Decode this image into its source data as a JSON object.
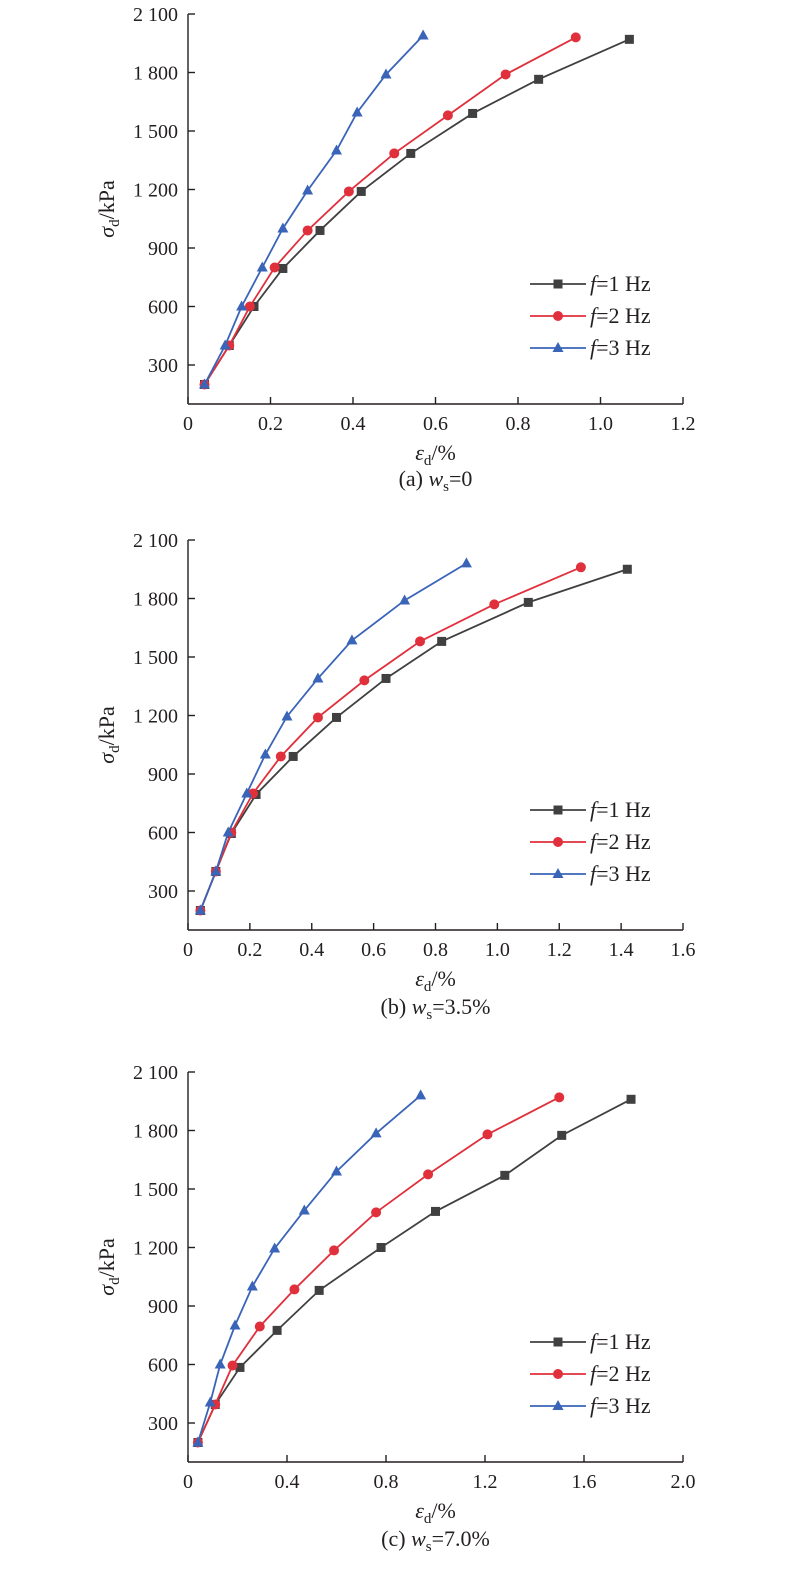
{
  "colors": {
    "f1": "#404040",
    "f2": "#e0303c",
    "f3": "#3a64b8",
    "axis": "#231f20"
  },
  "chart_data": [
    {
      "type": "line",
      "caption": {
        "prefix": "(a) ",
        "var": "w",
        "sub": "s",
        "rest": "=0"
      },
      "xlabel": {
        "sym": "ε",
        "sub": "d",
        "unit": "/%"
      },
      "ylabel": {
        "sym": "σ",
        "sub": "d",
        "unit": "/kPa"
      },
      "xlim": [
        0,
        1.2
      ],
      "ylim": [
        100,
        2100
      ],
      "xticks": [
        0,
        0.2,
        0.4,
        0.6,
        0.8,
        1.0,
        1.2
      ],
      "xtick_labels": [
        "0",
        "0.2",
        "0.4",
        "0.6",
        "0.8",
        "1.0",
        "1.2"
      ],
      "yticks": [
        300,
        600,
        900,
        1200,
        1500,
        1800,
        2100
      ],
      "ytick_labels": [
        "300",
        "600",
        "900",
        "1 200",
        "1 500",
        "1 800",
        "2 100"
      ],
      "legend_position": "center-right",
      "series": [
        {
          "name": "=1 Hz",
          "key": "f",
          "marker": "square",
          "color": "#404040",
          "x": [
            0.04,
            0.1,
            0.16,
            0.23,
            0.32,
            0.42,
            0.54,
            0.69,
            0.85,
            1.07
          ],
          "y": [
            200,
            400,
            600,
            795,
            990,
            1190,
            1385,
            1590,
            1765,
            1970
          ]
        },
        {
          "name": "=2 Hz",
          "key": "f",
          "marker": "circle",
          "color": "#e0303c",
          "x": [
            0.04,
            0.1,
            0.15,
            0.21,
            0.29,
            0.39,
            0.5,
            0.63,
            0.77,
            0.94
          ],
          "y": [
            200,
            400,
            600,
            800,
            990,
            1190,
            1385,
            1580,
            1790,
            1980
          ]
        },
        {
          "name": "=3 Hz",
          "key": "f",
          "marker": "triangle",
          "color": "#3a64b8",
          "x": [
            0.04,
            0.09,
            0.13,
            0.18,
            0.23,
            0.29,
            0.36,
            0.41,
            0.48,
            0.57
          ],
          "y": [
            200,
            400,
            600,
            800,
            1000,
            1195,
            1400,
            1595,
            1790,
            1990
          ]
        }
      ]
    },
    {
      "type": "line",
      "caption": {
        "prefix": "(b) ",
        "var": "w",
        "sub": "s",
        "rest": "=3.5%"
      },
      "xlabel": {
        "sym": "ε",
        "sub": "d",
        "unit": "/%"
      },
      "ylabel": {
        "sym": "σ",
        "sub": "d",
        "unit": "/kPa"
      },
      "xlim": [
        0,
        1.6
      ],
      "ylim": [
        100,
        2100
      ],
      "xticks": [
        0,
        0.2,
        0.4,
        0.6,
        0.8,
        1.0,
        1.2,
        1.4,
        1.6
      ],
      "xtick_labels": [
        "0",
        "0.2",
        "0.4",
        "0.6",
        "0.8",
        "1.0",
        "1.2",
        "1.4",
        "1.6"
      ],
      "yticks": [
        300,
        600,
        900,
        1200,
        1500,
        1800,
        2100
      ],
      "ytick_labels": [
        "300",
        "600",
        "900",
        "1 200",
        "1 500",
        "1 800",
        "2 100"
      ],
      "legend_position": "lower-right",
      "series": [
        {
          "name": "=1 Hz",
          "key": "f",
          "marker": "square",
          "color": "#404040",
          "x": [
            0.04,
            0.09,
            0.14,
            0.22,
            0.34,
            0.48,
            0.64,
            0.82,
            1.1,
            1.42
          ],
          "y": [
            200,
            400,
            595,
            795,
            990,
            1190,
            1390,
            1580,
            1780,
            1950
          ]
        },
        {
          "name": "=2 Hz",
          "key": "f",
          "marker": "circle",
          "color": "#e0303c",
          "x": [
            0.04,
            0.09,
            0.14,
            0.21,
            0.3,
            0.42,
            0.57,
            0.75,
            0.99,
            1.27
          ],
          "y": [
            200,
            400,
            600,
            800,
            990,
            1190,
            1380,
            1580,
            1770,
            1960
          ]
        },
        {
          "name": "=3 Hz",
          "key": "f",
          "marker": "triangle",
          "color": "#3a64b8",
          "x": [
            0.04,
            0.09,
            0.13,
            0.19,
            0.25,
            0.32,
            0.42,
            0.53,
            0.7,
            0.9
          ],
          "y": [
            200,
            400,
            600,
            800,
            1000,
            1195,
            1390,
            1585,
            1790,
            1980
          ]
        }
      ]
    },
    {
      "type": "line",
      "caption": {
        "prefix": "(c) ",
        "var": "w",
        "sub": "s",
        "rest": "=7.0%"
      },
      "xlabel": {
        "sym": "ε",
        "sub": "d",
        "unit": "/%"
      },
      "ylabel": {
        "sym": "σ",
        "sub": "d",
        "unit": "/kPa"
      },
      "xlim": [
        0,
        2.0
      ],
      "ylim": [
        100,
        2100
      ],
      "xticks": [
        0,
        0.4,
        0.8,
        1.2,
        1.6,
        2.0
      ],
      "xtick_labels": [
        "0",
        "0.4",
        "0.8",
        "1.2",
        "1.6",
        "2.0"
      ],
      "yticks": [
        300,
        600,
        900,
        1200,
        1500,
        1800,
        2100
      ],
      "ytick_labels": [
        "300",
        "600",
        "900",
        "1 200",
        "1 500",
        "1 800",
        "2 100"
      ],
      "legend_position": "lower-right",
      "series": [
        {
          "name": "=1 Hz",
          "key": "f",
          "marker": "square",
          "color": "#404040",
          "x": [
            0.04,
            0.11,
            0.21,
            0.36,
            0.53,
            0.78,
            1.0,
            1.28,
            1.51,
            1.79
          ],
          "y": [
            200,
            395,
            585,
            775,
            980,
            1200,
            1385,
            1570,
            1775,
            1960
          ]
        },
        {
          "name": "=2 Hz",
          "key": "f",
          "marker": "circle",
          "color": "#e0303c",
          "x": [
            0.04,
            0.11,
            0.18,
            0.29,
            0.43,
            0.59,
            0.76,
            0.97,
            1.21,
            1.5
          ],
          "y": [
            200,
            395,
            595,
            795,
            985,
            1185,
            1380,
            1575,
            1780,
            1970
          ]
        },
        {
          "name": "=3 Hz",
          "key": "f",
          "marker": "triangle",
          "color": "#3a64b8",
          "x": [
            0.04,
            0.09,
            0.13,
            0.19,
            0.26,
            0.35,
            0.47,
            0.6,
            0.76,
            0.94
          ],
          "y": [
            200,
            405,
            600,
            800,
            1000,
            1195,
            1390,
            1590,
            1785,
            1980
          ]
        }
      ]
    }
  ]
}
